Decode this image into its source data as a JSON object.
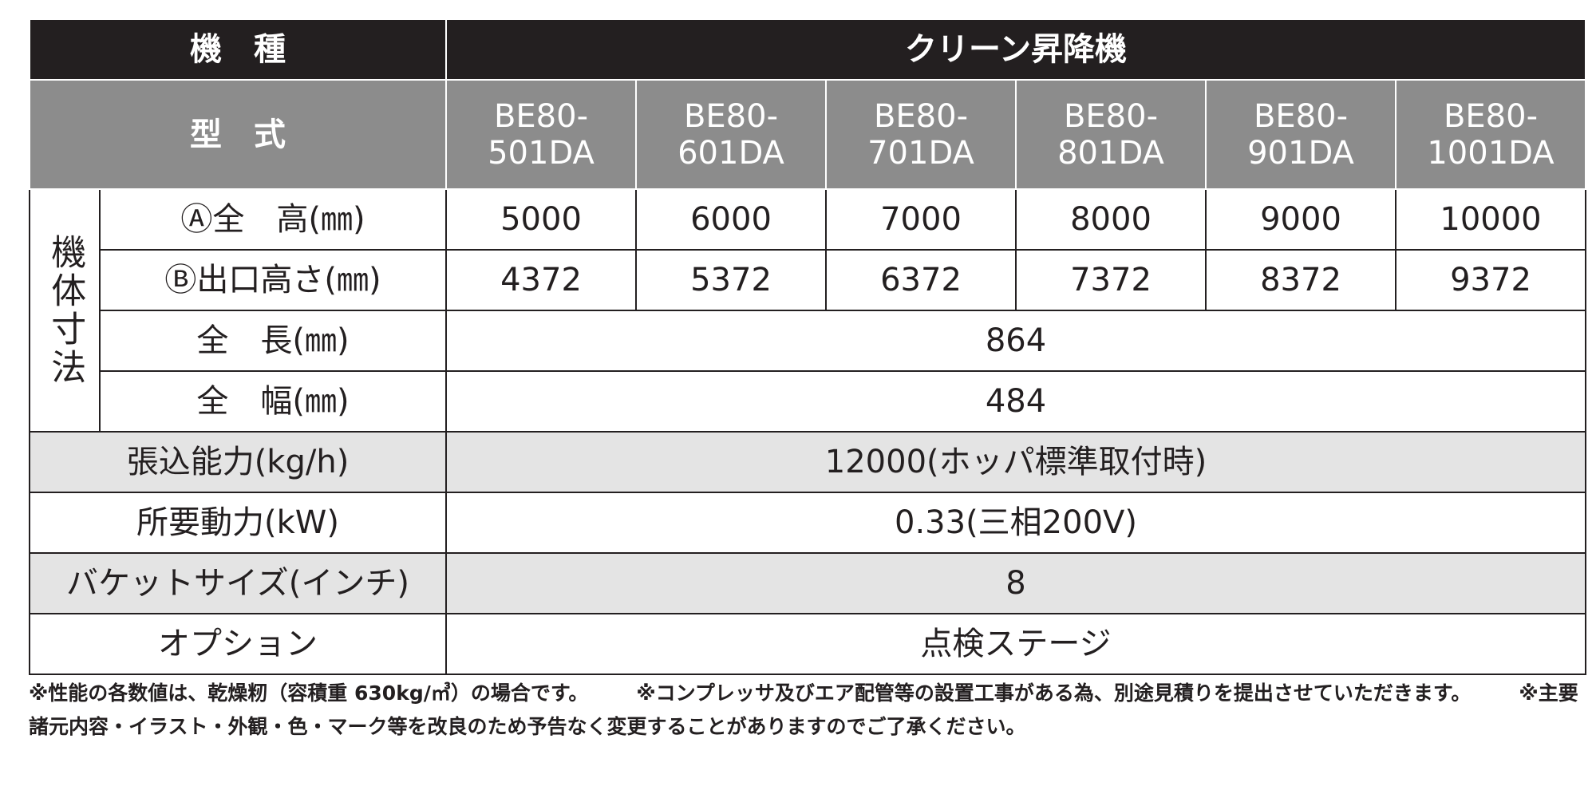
{
  "header": {
    "label": "機　種",
    "group": "クリーン昇降機"
  },
  "models": {
    "label": "型　式",
    "items": [
      "BE80-\n501DA",
      "BE80-\n601DA",
      "BE80-\n701DA",
      "BE80-\n801DA",
      "BE80-\n901DA",
      "BE80-\n1001DA"
    ]
  },
  "dimensions": {
    "group": "機体寸法",
    "rows": [
      {
        "label": "Ⓐ全　高(㎜)",
        "values": [
          5000,
          6000,
          7000,
          8000,
          9000,
          10000
        ]
      },
      {
        "label": "Ⓑ出口高さ(㎜)",
        "values": [
          4372,
          5372,
          6372,
          7372,
          8372,
          9372
        ]
      },
      {
        "label": "全　長(㎜)",
        "value": 864
      },
      {
        "label": "全　幅(㎜)",
        "value": 484
      }
    ]
  },
  "rows": [
    {
      "label": "張込能力(kg/h)",
      "value": "12000(ホッパ標準取付時)"
    },
    {
      "label": "所要動力(kW)",
      "value": "0.33(三相200V)"
    },
    {
      "label": "バケットサイズ(インチ)",
      "value": "8"
    },
    {
      "label": "オプション",
      "value": "点検ステージ"
    }
  ],
  "notes": [
    "※性能の各数値は、乾燥籾（容積重 630kg/㎥）の場合です。",
    "※コンプレッサ及びエア配管等の設置工事がある為、別途見積りを提出させていただきます。",
    "※主要諸元内容・イラスト・外観・色・マーク等を改良のため予告なく変更することがありますのでご了承ください。"
  ]
}
